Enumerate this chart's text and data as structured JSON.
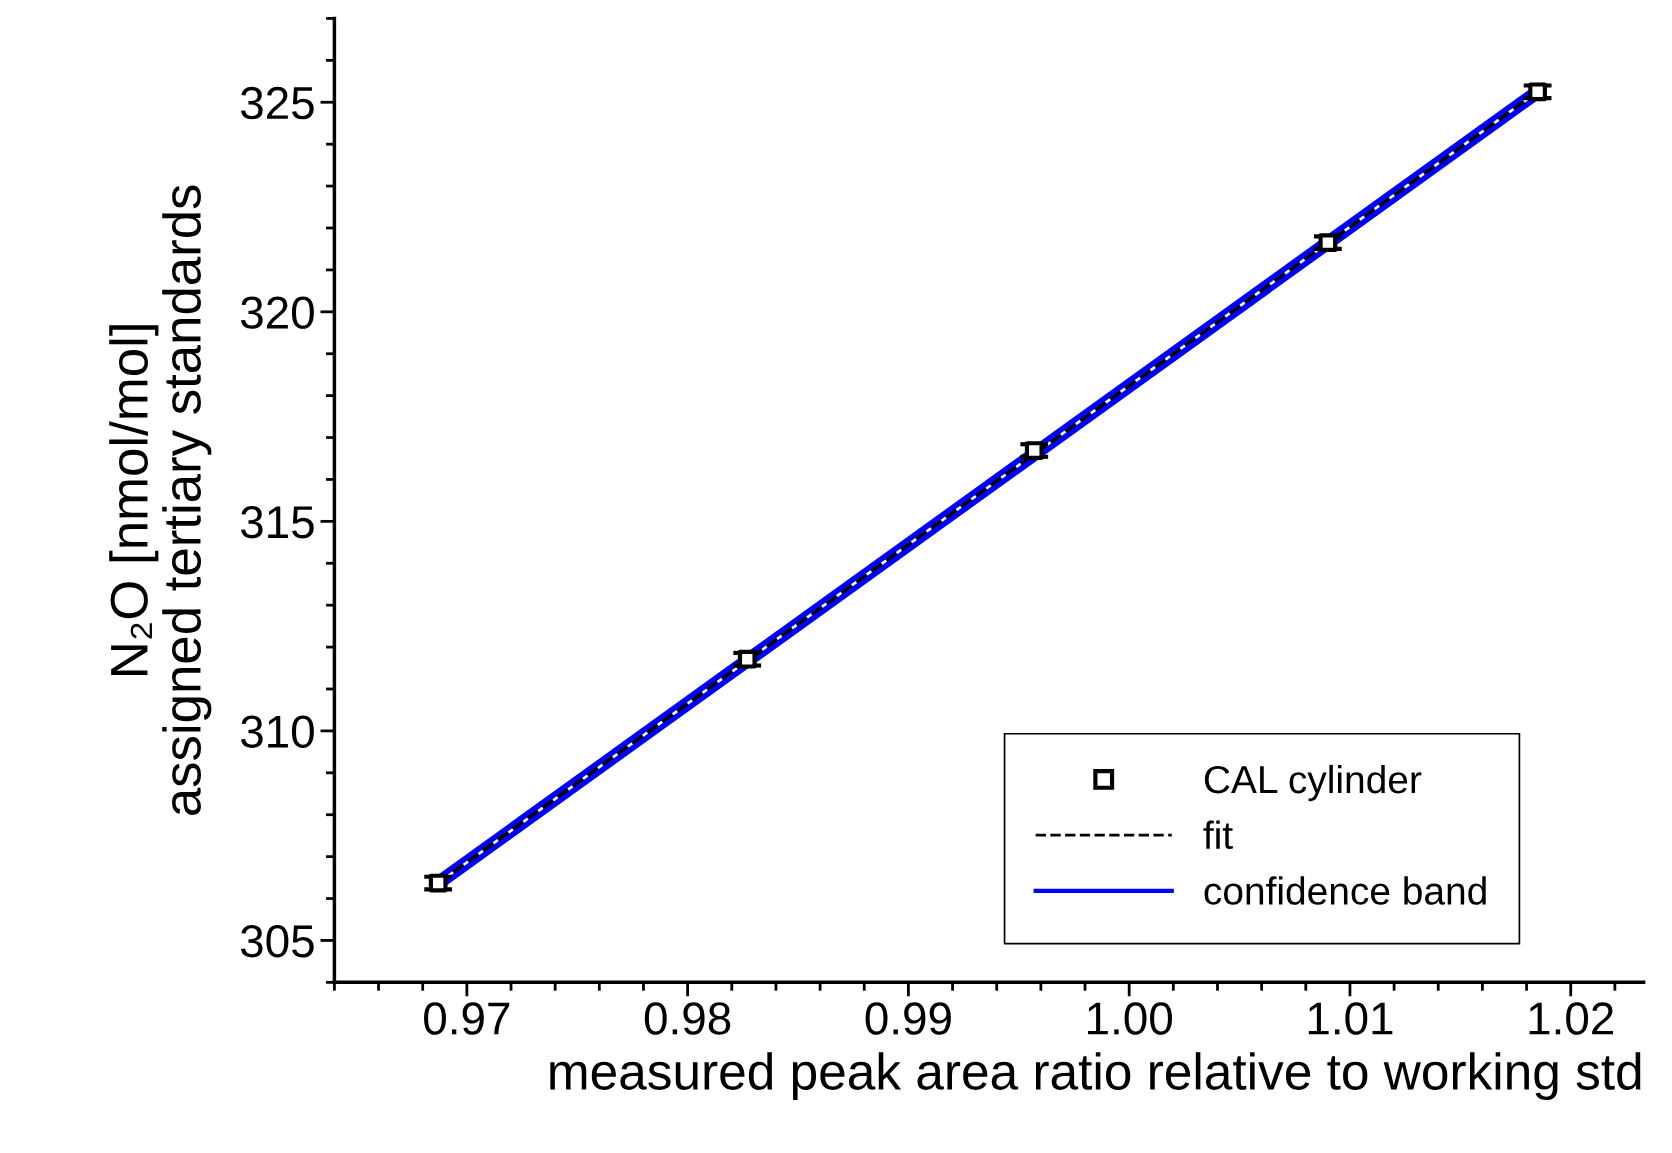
{
  "chart_data": {
    "type": "scatter",
    "xlabel": "measured peak area ratio relative to working std",
    "ylabel": "N₂O [nmol/mol]\nassigned tertiary standards",
    "xlim": [
      0.964,
      1.0233
    ],
    "xticks": [
      {
        "value": 0.97,
        "label": "0.97"
      },
      {
        "value": 0.98,
        "label": "0.98"
      },
      {
        "value": 0.99,
        "label": "0.99"
      },
      {
        "value": 1.0,
        "label": "1.00"
      },
      {
        "value": 1.01,
        "label": "1.01"
      },
      {
        "value": 1.02,
        "label": "1.02"
      }
    ],
    "ylim": [
      304,
      327
    ],
    "yticks": [
      305,
      310,
      315,
      320,
      325
    ],
    "legend": "bottom right",
    "grid": false,
    "series": [
      {
        "name": "CAL cylinder",
        "color": "#000000",
        "marker": "square",
        "x": [
          0.9687,
          0.9827,
          0.9957,
          1.009,
          1.0185
        ],
        "values": [
          306.37,
          311.71,
          316.69,
          321.65,
          325.25
        ],
        "errors": [
          0.15,
          0.15,
          0.15,
          0.15,
          0.15
        ]
      },
      {
        "name": "fit",
        "type": "line",
        "color": "#000000",
        "line_style": "dashed",
        "x": [
          0.9687,
          1.0185
        ],
        "values": [
          306.37,
          325.25
        ]
      },
      {
        "name": "confidence band",
        "type": "line",
        "color": "#0000ff",
        "line_style": "solid",
        "x": [
          0.9687,
          1.0185
        ],
        "values": [
          306.49,
          325.37
        ]
      },
      {
        "type": "line",
        "color": "#0000ff",
        "line_style": "solid",
        "x": [
          0.9687,
          1.0185
        ],
        "values": [
          306.25,
          325.13
        ]
      }
    ]
  }
}
